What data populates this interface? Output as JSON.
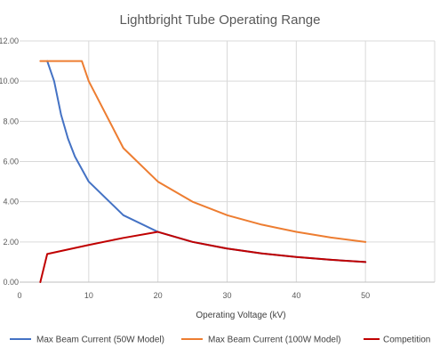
{
  "chart_data": {
    "type": "line",
    "title": "Lightbright Tube Operating Range",
    "xlabel": "Operating Voltage (kV)",
    "ylabel": "",
    "xlim": [
      0,
      60
    ],
    "ylim": [
      0,
      12
    ],
    "x_ticks": [
      "0",
      "10",
      "20",
      "30",
      "40",
      "50"
    ],
    "x_tick_values": [
      0,
      10,
      20,
      30,
      40,
      50
    ],
    "y_ticks": [
      "0.00",
      "2.00",
      "4.00",
      "6.00",
      "8.00",
      "10.00",
      "12.00"
    ],
    "y_tick_values": [
      0,
      2,
      4,
      6,
      8,
      10,
      12
    ],
    "grid": true,
    "legend_position": "bottom",
    "series": [
      {
        "name": "Max Beam Current (50W Model)",
        "color": "#4472C4",
        "x": [
          4,
          5,
          6,
          7,
          8,
          10,
          15,
          20,
          25,
          30,
          35,
          40,
          45,
          50
        ],
        "values": [
          11,
          10,
          8.33,
          7.14,
          6.25,
          5,
          3.33,
          2.5,
          2,
          1.67,
          1.43,
          1.25,
          1.11,
          1
        ]
      },
      {
        "name": "Max Beam Current (100W Model)",
        "color": "#ED7D31",
        "x": [
          3,
          9,
          10,
          15,
          20,
          25,
          30,
          35,
          40,
          45,
          50
        ],
        "values": [
          11,
          11,
          10,
          6.67,
          5,
          4,
          3.33,
          2.86,
          2.5,
          2.22,
          2
        ]
      },
      {
        "name": "Competition",
        "color": "#C00000",
        "x": [
          3,
          4,
          6,
          10,
          15,
          20,
          25,
          30,
          35,
          40,
          45,
          50
        ],
        "values": [
          0,
          1.4,
          1.55,
          1.85,
          2.2,
          2.5,
          2,
          1.67,
          1.43,
          1.25,
          1.11,
          1
        ]
      }
    ]
  }
}
